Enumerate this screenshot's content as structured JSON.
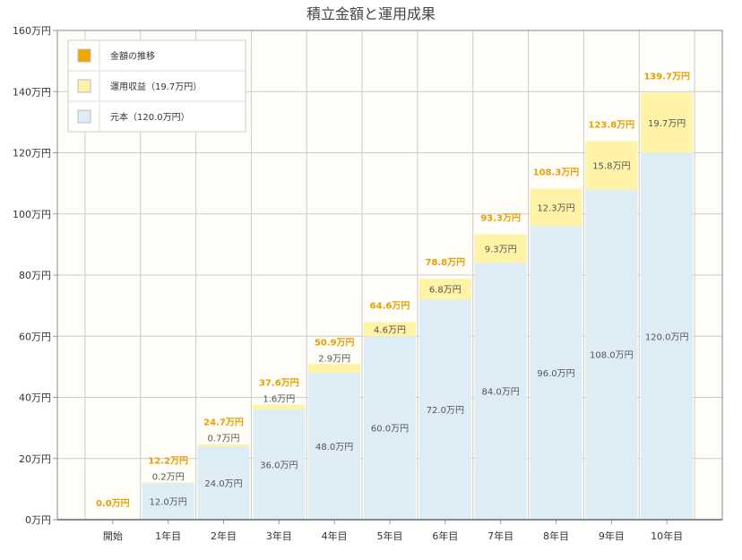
{
  "chart_data": {
    "type": "bar",
    "stacked": true,
    "title": "積立金額と運用成果",
    "xlabel": "",
    "ylabel": "",
    "ylim": [
      0,
      160
    ],
    "y_ticks": [
      0,
      20,
      40,
      60,
      80,
      100,
      120,
      140,
      160
    ],
    "y_tick_labels": [
      "0万円",
      "20万円",
      "40万円",
      "60万円",
      "80万円",
      "100万円",
      "120万円",
      "140万円",
      "160万円"
    ],
    "categories": [
      "開始",
      "1年目",
      "2年目",
      "3年目",
      "4年目",
      "5年目",
      "6年目",
      "7年目",
      "8年目",
      "9年目",
      "10年目"
    ],
    "series": [
      {
        "name": "元本（120.0万円）",
        "color": "#deedf5",
        "values": [
          0,
          12.0,
          24.0,
          36.0,
          48.0,
          60.0,
          72.0,
          84.0,
          96.0,
          108.0,
          120.0
        ],
        "labels": [
          "",
          "12.0万円",
          "24.0万円",
          "36.0万円",
          "48.0万円",
          "60.0万円",
          "72.0万円",
          "84.0万円",
          "96.0万円",
          "108.0万円",
          "120.0万円"
        ]
      },
      {
        "name": "運用収益（19.7万円）",
        "color": "#fff3a8",
        "values": [
          0,
          0.2,
          0.7,
          1.6,
          2.9,
          4.6,
          6.8,
          9.3,
          12.3,
          15.8,
          19.7
        ],
        "labels": [
          "",
          "0.2万円",
          "0.7万円",
          "1.6万円",
          "2.9万円",
          "4.6万円",
          "6.8万円",
          "9.3万円",
          "12.3万円",
          "15.8万円",
          "19.7万円"
        ]
      }
    ],
    "totals": [
      0.0,
      12.2,
      24.7,
      37.6,
      50.9,
      64.6,
      78.8,
      93.3,
      108.3,
      123.8,
      139.7
    ],
    "total_labels": [
      "0.0万円",
      "12.2万円",
      "24.7万円",
      "37.6万円",
      "50.9万円",
      "64.6万円",
      "78.8万円",
      "93.3万円",
      "108.3万円",
      "123.8万円",
      "139.7万円"
    ],
    "legend": {
      "position": "top-left",
      "items": [
        {
          "label": "金額の推移",
          "color": "#f0a500"
        },
        {
          "label": "運用収益（19.7万円）",
          "color": "#fff3a8"
        },
        {
          "label": "元本（120.0万円）",
          "color": "#deedf5"
        }
      ]
    },
    "grid": true,
    "colors": {
      "plot_background": "#fffdf7",
      "grid": "#cccccc",
      "total_label": "#e8a000"
    }
  }
}
